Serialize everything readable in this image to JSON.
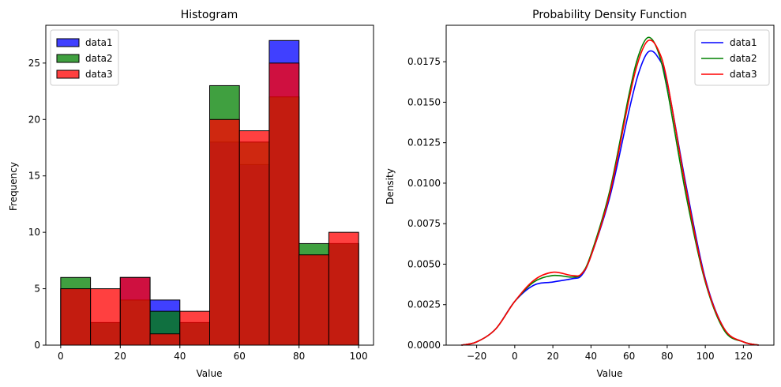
{
  "chart_data": [
    {
      "type": "bar",
      "subtype": "histogram",
      "title": "Histogram",
      "xlabel": "Value",
      "ylabel": "Frequency",
      "xlim": [
        -5,
        105
      ],
      "ylim": [
        0,
        28.35
      ],
      "xticks": [
        0,
        20,
        40,
        60,
        80,
        100
      ],
      "yticks": [
        0,
        5,
        10,
        15,
        20,
        25
      ],
      "bin_edges": [
        0,
        10,
        20,
        30,
        40,
        50,
        60,
        70,
        80,
        90,
        100
      ],
      "grid": false,
      "legend": "top-left",
      "series": [
        {
          "name": "data1",
          "color": "#0000ff",
          "values": [
            5,
            2,
            6,
            4,
            2,
            18,
            16,
            27,
            8,
            9
          ]
        },
        {
          "name": "data2",
          "color": "#008000",
          "values": [
            6,
            2,
            4,
            3,
            2,
            23,
            18,
            22,
            9,
            9
          ]
        },
        {
          "name": "data3",
          "color": "#ff0000",
          "values": [
            5,
            5,
            6,
            1,
            3,
            20,
            19,
            25,
            8,
            10
          ]
        }
      ]
    },
    {
      "type": "line",
      "subtype": "kde",
      "title": "Probability Density Function",
      "xlabel": "Value",
      "ylabel": "Density",
      "xlim": [
        -36,
        136
      ],
      "ylim": [
        0,
        0.01975
      ],
      "xticks": [
        -20,
        0,
        20,
        40,
        60,
        80,
        100,
        120
      ],
      "yticks": [
        0.0,
        0.0025,
        0.005,
        0.0075,
        0.01,
        0.0125,
        0.015,
        0.0175
      ],
      "ytick_labels": [
        "0.0000",
        "0.0025",
        "0.0050",
        "0.0075",
        "0.0100",
        "0.0125",
        "0.0150",
        "0.0175"
      ],
      "grid": false,
      "legend": "top-right",
      "x": [
        -28,
        -20,
        -10,
        0,
        10,
        20,
        30,
        35,
        40,
        50,
        60,
        65,
        70,
        75,
        80,
        90,
        100,
        110,
        120,
        128
      ],
      "series": [
        {
          "name": "data1",
          "color": "#0000ff",
          "values": [
            0.0,
            0.0002,
            0.001,
            0.0027,
            0.0037,
            0.0039,
            0.0041,
            0.0043,
            0.0055,
            0.0092,
            0.0145,
            0.0168,
            0.0181,
            0.0178,
            0.0162,
            0.0098,
            0.0041,
            0.001,
            0.0002,
            0.0
          ]
        },
        {
          "name": "data2",
          "color": "#008000",
          "values": [
            0.0,
            0.0002,
            0.001,
            0.0027,
            0.0039,
            0.0043,
            0.0042,
            0.0044,
            0.0056,
            0.0096,
            0.0155,
            0.0179,
            0.019,
            0.0182,
            0.0158,
            0.0092,
            0.0039,
            0.0009,
            0.0002,
            0.0
          ]
        },
        {
          "name": "data3",
          "color": "#ff0000",
          "values": [
            0.0,
            0.0002,
            0.001,
            0.0027,
            0.004,
            0.0045,
            0.0043,
            0.0044,
            0.0055,
            0.0094,
            0.0152,
            0.0176,
            0.0188,
            0.0183,
            0.0163,
            0.0096,
            0.004,
            0.001,
            0.0002,
            0.0
          ]
        }
      ]
    }
  ]
}
